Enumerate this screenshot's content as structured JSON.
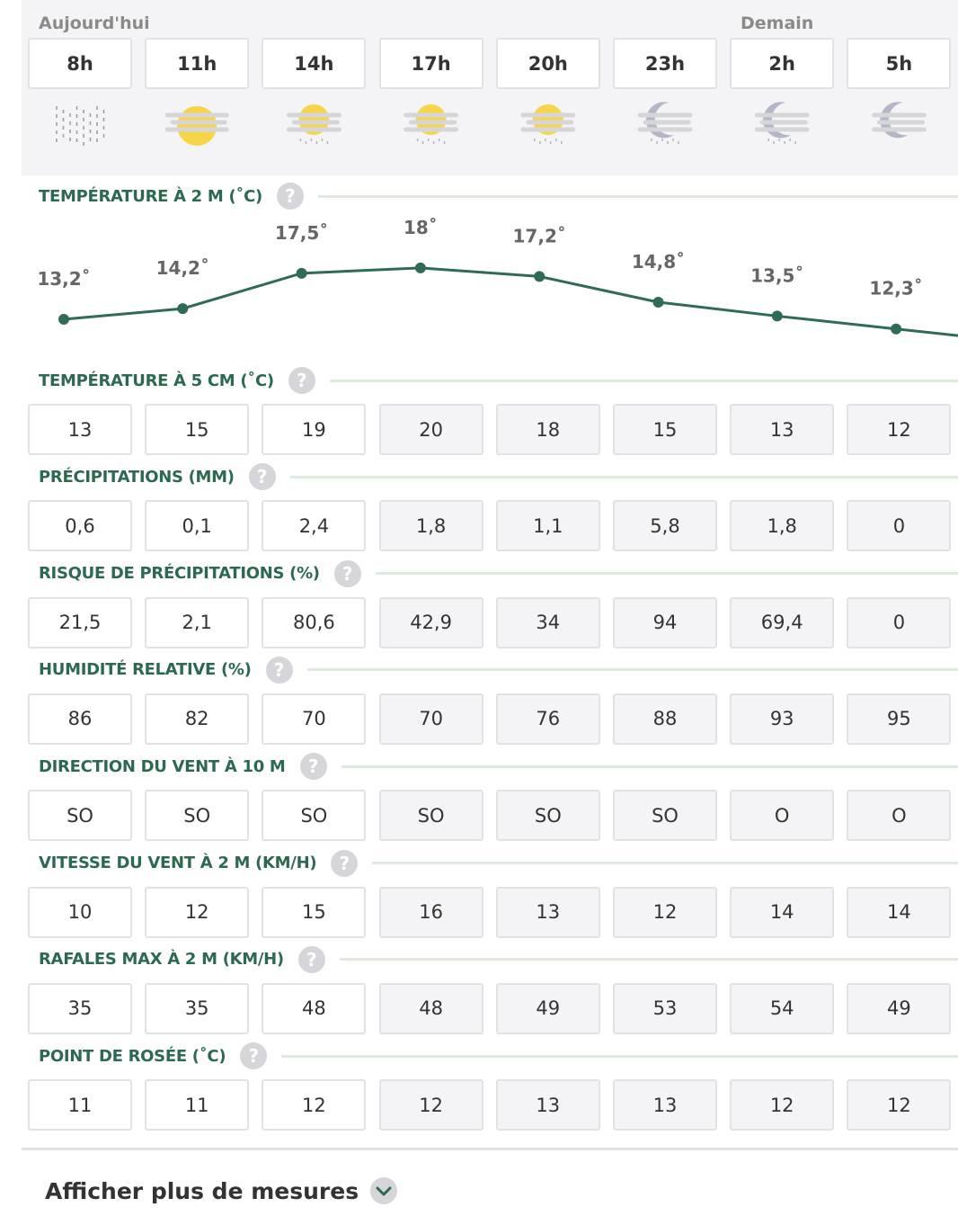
{
  "header": {
    "today": "Aujourd'hui",
    "tomorrow": "Demain"
  },
  "hours": [
    "8h",
    "11h",
    "14h",
    "17h",
    "20h",
    "23h",
    "2h",
    "5h"
  ],
  "help_icon": "?",
  "temperature_2m": {
    "title": "TEMPÉRATURE À 2 M (˚C)",
    "values": [
      13.2,
      14.2,
      17.5,
      18,
      17.2,
      14.8,
      13.5,
      12.3
    ],
    "value_labels": [
      "13,2˚",
      "14,2˚",
      "17,5˚",
      "18˚",
      "17,2˚",
      "14,8˚",
      "13,5˚",
      "12,3˚"
    ]
  },
  "rows": [
    {
      "title": "TEMPÉRATURE À 5 CM (˚C)",
      "values": [
        13,
        15,
        19,
        20,
        18,
        15,
        13,
        12
      ]
    },
    {
      "title": "PRÉCIPITATIONS (MM)",
      "values": [
        "0,6",
        "0,1",
        "2,4",
        "1,8",
        "1,1",
        "5,8",
        "1,8",
        0
      ]
    },
    {
      "title": "RISQUE DE PRÉCIPITATIONS (%)",
      "values": [
        "21,5",
        "2,1",
        "80,6",
        "42,9",
        34,
        94,
        "69,4",
        0
      ]
    },
    {
      "title": "HUMIDITÉ RELATIVE (%)",
      "values": [
        86,
        82,
        70,
        70,
        76,
        88,
        93,
        95
      ]
    },
    {
      "title": "DIRECTION DU VENT À 10 M",
      "values": [
        "SO",
        "SO",
        "SO",
        "SO",
        "SO",
        "SO",
        "O",
        "O"
      ]
    },
    {
      "title": "VITESSE DU VENT À 2 M (KM/H)",
      "values": [
        10,
        12,
        15,
        16,
        13,
        12,
        14,
        14
      ]
    },
    {
      "title": "RAFALES MAX À 2 M (KM/H)",
      "values": [
        35,
        35,
        48,
        48,
        49,
        53,
        54,
        49
      ]
    },
    {
      "title": "POINT DE ROSÉE (˚C)",
      "values": [
        11,
        11,
        12,
        12,
        13,
        13,
        12,
        12
      ]
    }
  ],
  "more_button": "Afficher plus de mesures"
}
